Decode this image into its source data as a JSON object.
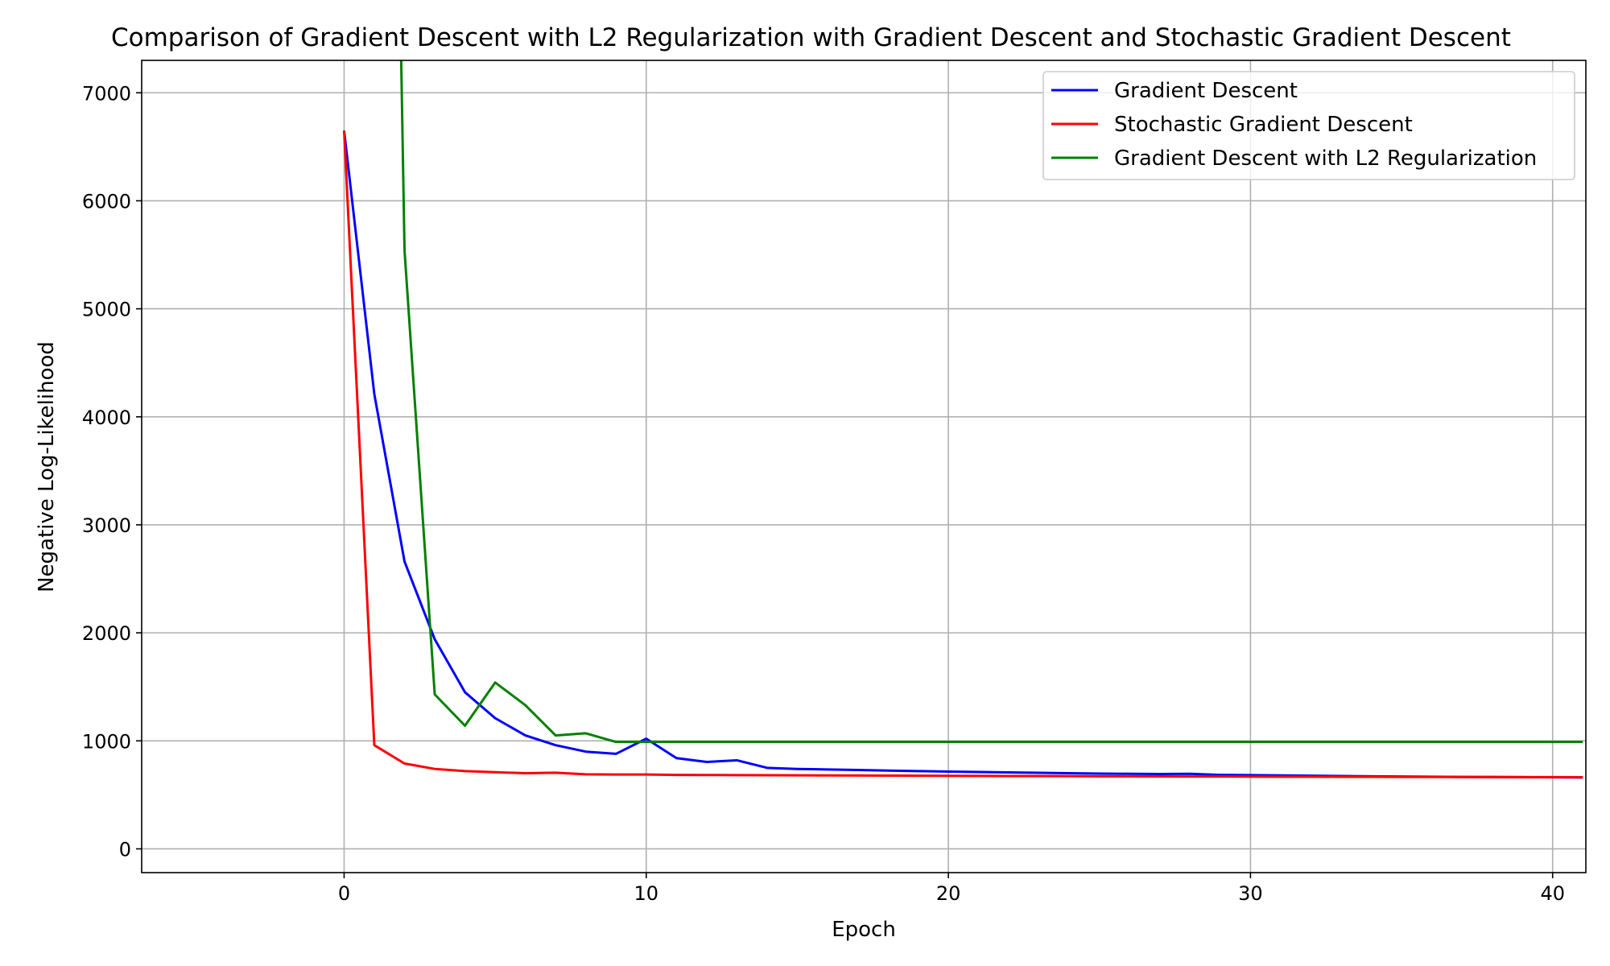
{
  "chart_data": {
    "type": "line",
    "title": "Comparison of Gradient Descent with L2 Regularization with Gradient Descent and Stochastic Gradient Descent",
    "xlabel": "Epoch",
    "ylabel": "Negative Log-Likelihood",
    "xlim": [
      -6.7,
      41.1
    ],
    "ylim": [
      -220,
      7300
    ],
    "xticks": [
      0,
      10,
      20,
      30,
      40
    ],
    "yticks": [
      0,
      1000,
      2000,
      3000,
      4000,
      5000,
      6000,
      7000
    ],
    "grid": true,
    "legend_position": "top-right",
    "series": [
      {
        "name": "Gradient Descent",
        "color": "#0000ff",
        "x": [
          0,
          1,
          2,
          3,
          4,
          5,
          6,
          7,
          8,
          9,
          10,
          11,
          12,
          13,
          14,
          15,
          16,
          17,
          18,
          19,
          20,
          21,
          22,
          23,
          24,
          25,
          26,
          27,
          28,
          29,
          30,
          31,
          32,
          33,
          34,
          35,
          36,
          37,
          38,
          39,
          40,
          41
        ],
        "y": [
          6650,
          4210,
          2660,
          1940,
          1450,
          1210,
          1050,
          960,
          900,
          880,
          1020,
          840,
          805,
          820,
          750,
          740,
          735,
          730,
          725,
          720,
          715,
          712,
          708,
          704,
          700,
          697,
          695,
          693,
          695,
          685,
          683,
          680,
          677,
          674,
          672,
          670,
          668,
          666,
          665,
          664,
          662,
          660
        ]
      },
      {
        "name": "Stochastic Gradient Descent",
        "color": "#ff0000",
        "x": [
          0,
          1,
          2,
          3,
          4,
          5,
          6,
          7,
          8,
          9,
          10,
          11,
          12,
          13,
          14,
          15,
          16,
          17,
          18,
          19,
          20,
          21,
          22,
          23,
          24,
          25,
          26,
          27,
          28,
          29,
          30,
          31,
          32,
          33,
          34,
          35,
          36,
          37,
          38,
          39,
          40,
          41
        ],
        "y": [
          6650,
          960,
          790,
          740,
          720,
          710,
          700,
          705,
          690,
          688,
          688,
          685,
          684,
          683,
          682,
          681,
          680,
          679,
          678,
          677,
          676,
          675,
          674,
          674,
          673,
          672,
          672,
          671,
          670,
          670,
          669,
          668,
          668,
          667,
          667,
          666,
          666,
          665,
          665,
          664,
          664,
          663
        ]
      },
      {
        "name": "Gradient Descent with L2 Regularization",
        "color": "#008000",
        "x": [
          1.89,
          2,
          3,
          4,
          5,
          6,
          7,
          8,
          9,
          10,
          11,
          12,
          13,
          14,
          15,
          16,
          17,
          18,
          19,
          20,
          21,
          22,
          23,
          24,
          25,
          26,
          27,
          28,
          29,
          30,
          31,
          32,
          33,
          34,
          35,
          36,
          37,
          38,
          39,
          40,
          41
        ],
        "y": [
          7300,
          5540,
          1430,
          1140,
          1540,
          1330,
          1050,
          1070,
          990,
          990,
          990,
          990,
          990,
          990,
          990,
          990,
          990,
          990,
          990,
          990,
          990,
          990,
          990,
          990,
          990,
          990,
          990,
          990,
          990,
          990,
          990,
          990,
          990,
          990,
          990,
          990,
          990,
          990,
          990,
          990,
          990
        ]
      }
    ]
  }
}
